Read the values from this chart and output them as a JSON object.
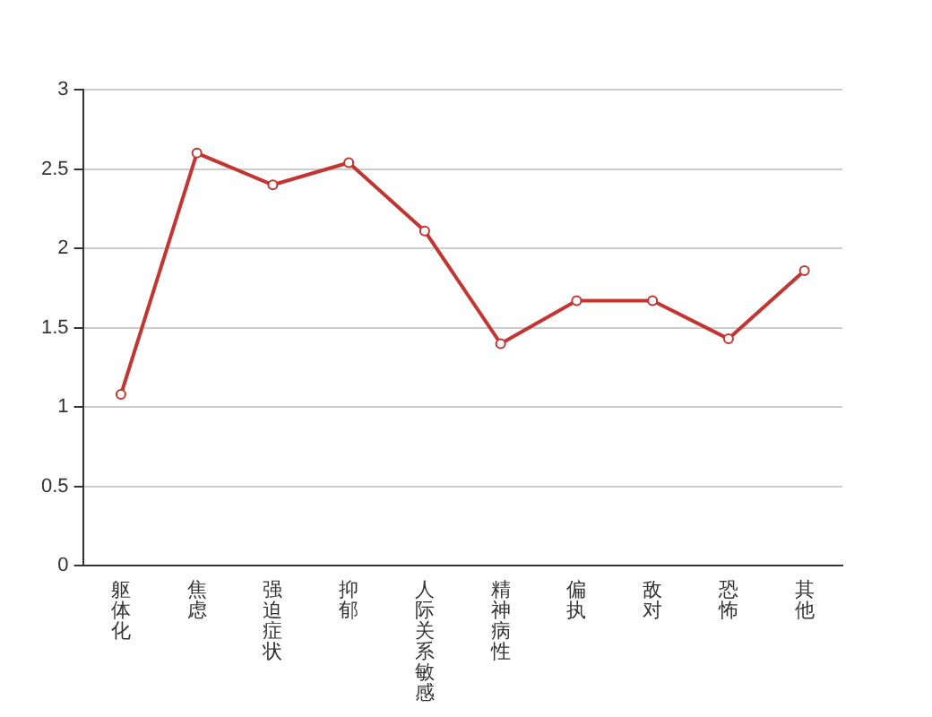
{
  "chart_data": {
    "type": "line",
    "categories": [
      "躯体化",
      "焦虑",
      "强迫症状",
      "抑郁",
      "人际关系敏感",
      "精神病性",
      "偏执",
      "敌对",
      "恐怖",
      "其他"
    ],
    "series": [
      {
        "color": "#c23531",
        "values": [
          1.08,
          2.6,
          2.4,
          2.54,
          2.11,
          1.4,
          1.67,
          1.67,
          1.43,
          1.86
        ]
      }
    ],
    "ylim": [
      0,
      3
    ],
    "yticks": [
      0,
      0.5,
      1,
      1.5,
      2,
      2.5,
      3
    ],
    "grid": "y",
    "marker": "circle",
    "line_style": "solid"
  }
}
